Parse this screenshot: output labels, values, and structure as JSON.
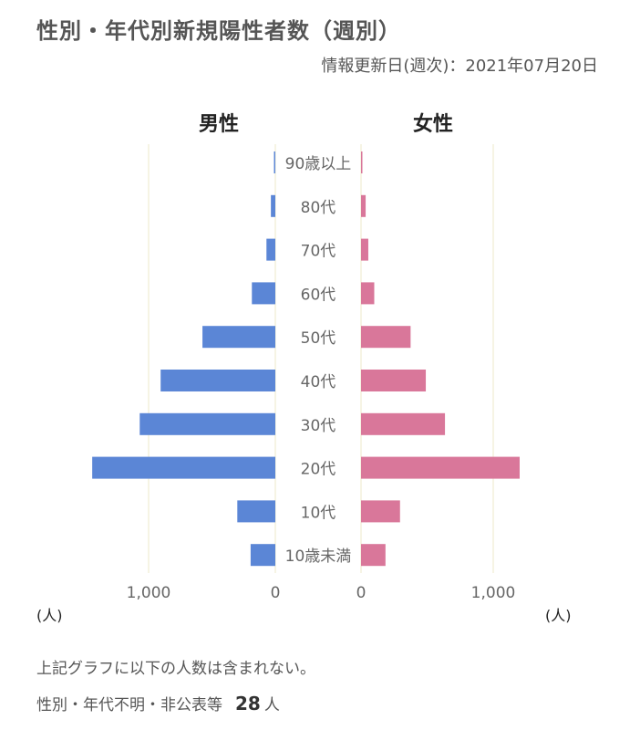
{
  "title": "性別・年代別新規陽性者数（週別）",
  "updated": "情報更新日(週次)：2021年07月20日",
  "chart_data": {
    "type": "bar",
    "orientation": "horizontal-pyramid",
    "categories": [
      "90歳以上",
      "80代",
      "70代",
      "60代",
      "50代",
      "40代",
      "30代",
      "20代",
      "10代",
      "10歳未満"
    ],
    "series": [
      {
        "name": "男性",
        "color": "#5b86d6",
        "values": [
          10,
          35,
          70,
          185,
          575,
          905,
          1070,
          1445,
          300,
          195
        ]
      },
      {
        "name": "女性",
        "color": "#d9779a",
        "values": [
          10,
          35,
          55,
          100,
          375,
          490,
          635,
          1200,
          295,
          185
        ]
      }
    ],
    "xlim": [
      0,
      1500
    ],
    "male_ticks": [
      "1,000",
      "0"
    ],
    "female_ticks": [
      "0",
      "1,000"
    ],
    "unit_label": "(人)",
    "grid": true
  },
  "notes": {
    "line1": "上記グラフに以下の人数は含まれない。",
    "line2_label": "性別・年代不明・非公表等",
    "line2_count": "28",
    "line2_unit": "人"
  }
}
